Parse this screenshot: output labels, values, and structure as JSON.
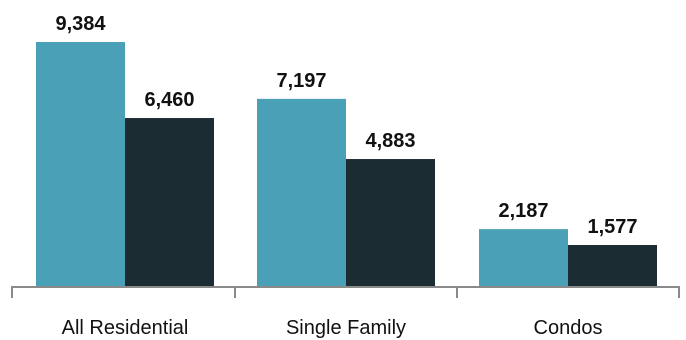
{
  "chart_data": {
    "type": "bar",
    "title": "",
    "xlabel": "",
    "ylabel": "",
    "categories": [
      "All Residential",
      "Single Family",
      "Condos"
    ],
    "series": [
      {
        "values": [
          9384,
          7197,
          2187
        ],
        "color": "#4aa0b6"
      },
      {
        "values": [
          6460,
          4883,
          1577
        ],
        "color": "#1c2c33"
      }
    ],
    "value_labels": [
      [
        "9,384",
        "7,197",
        "2,187"
      ],
      [
        "6,460",
        "4,883",
        "1,577"
      ]
    ],
    "ylim": [
      0,
      9384
    ],
    "grid": false,
    "legend": "none"
  }
}
